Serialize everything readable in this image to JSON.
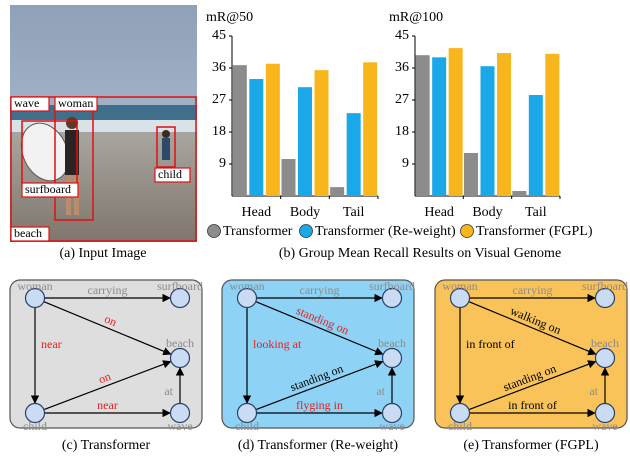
{
  "image": {
    "labels": [
      "wave",
      "woman",
      "surfboard",
      "child",
      "beach"
    ],
    "caption": "(a) Input Image"
  },
  "chart_data": [
    {
      "type": "bar",
      "ylabel": "mR@50",
      "categories": [
        "Head",
        "Body",
        "Tail"
      ],
      "series": [
        {
          "name": "Transformer",
          "color": "#8c8c8c",
          "values": [
            36.8,
            10.4,
            2.5
          ]
        },
        {
          "name": "Transformer (Re-weight)",
          "color": "#1aa8e8",
          "values": [
            32.9,
            30.6,
            23.3
          ]
        },
        {
          "name": "Transformer (FGPL)",
          "color": "#f9b51c",
          "values": [
            37.2,
            35.4,
            37.6
          ]
        }
      ],
      "ylim": [
        0,
        45
      ],
      "yticks": [
        9,
        18,
        27,
        36,
        45
      ]
    },
    {
      "type": "bar",
      "ylabel": "mR@100",
      "categories": [
        "Head",
        "Body",
        "Tail"
      ],
      "series": [
        {
          "color": "#8c8c8c",
          "values": [
            39.6,
            12.1,
            1.4
          ]
        },
        {
          "color": "#1aa8e8",
          "values": [
            39.0,
            36.5,
            28.4
          ]
        },
        {
          "color": "#f9b51c",
          "values": [
            41.6,
            40.2,
            40.0
          ]
        }
      ],
      "ylim": [
        0,
        45
      ],
      "yticks": [
        9,
        18,
        27,
        36,
        45
      ]
    }
  ],
  "chart_caption": "(b) Group Mean Recall Results on Visual Genome",
  "diagrams": [
    {
      "background": "#dedede",
      "caption": "(c) Transformer",
      "nodes": [
        "woman",
        "surfboard",
        "beach",
        "child",
        "wave"
      ],
      "edges": [
        {
          "label": "carrying",
          "color": "#8c8c8c"
        },
        {
          "label": "on",
          "color": "#e8201c"
        },
        {
          "label": "near",
          "color": "#e8201c"
        },
        {
          "label": "on",
          "color": "#e8201c"
        },
        {
          "label": "near",
          "color": "#e8201c"
        },
        {
          "label": "at",
          "color": "#8c8c8c"
        }
      ]
    },
    {
      "background": "#8ed3f5",
      "caption": "(d) Transformer (Re-weight)",
      "nodes": [
        "woman",
        "surfboard",
        "beach",
        "child",
        "wave"
      ],
      "edges": [
        {
          "label": "carrying",
          "color": "#8c8c8c"
        },
        {
          "label": "standing on",
          "color": "#e8201c"
        },
        {
          "label": "looking at",
          "color": "#e8201c"
        },
        {
          "label": "standing on",
          "color": "#000000"
        },
        {
          "label": "flyging in",
          "color": "#e8201c"
        },
        {
          "label": "at",
          "color": "#8c8c8c"
        }
      ]
    },
    {
      "background": "#f9c35a",
      "caption": "(e) Transformer (FGPL)",
      "nodes": [
        "woman",
        "surfboard",
        "beach",
        "child",
        "wave"
      ],
      "edges": [
        {
          "label": "carrying",
          "color": "#8c8c8c"
        },
        {
          "label": "walking on",
          "color": "#000000"
        },
        {
          "label": "in front of",
          "color": "#000000"
        },
        {
          "label": "standing on",
          "color": "#000000"
        },
        {
          "label": "in front of",
          "color": "#000000"
        },
        {
          "label": "at",
          "color": "#8c8c8c"
        }
      ]
    }
  ]
}
